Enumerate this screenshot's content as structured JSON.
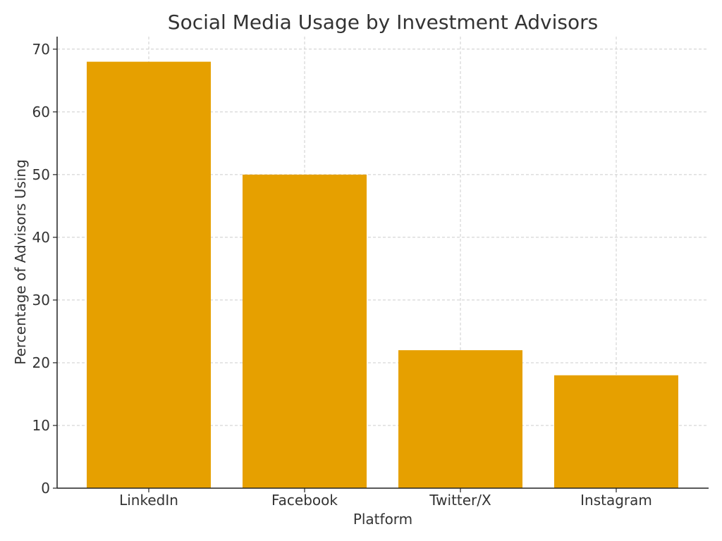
{
  "chart_data": {
    "type": "bar",
    "title": "Social Media Usage by Investment Advisors",
    "xlabel": "Platform",
    "ylabel": "Percentage of Advisors Using",
    "categories": [
      "LinkedIn",
      "Facebook",
      "Twitter/X",
      "Instagram"
    ],
    "values": [
      68,
      50,
      22,
      18
    ],
    "ylim": [
      0,
      72
    ],
    "yticks": [
      0,
      10,
      20,
      30,
      40,
      50,
      60,
      70
    ],
    "grid": true,
    "bar_color": "#E6A000"
  }
}
